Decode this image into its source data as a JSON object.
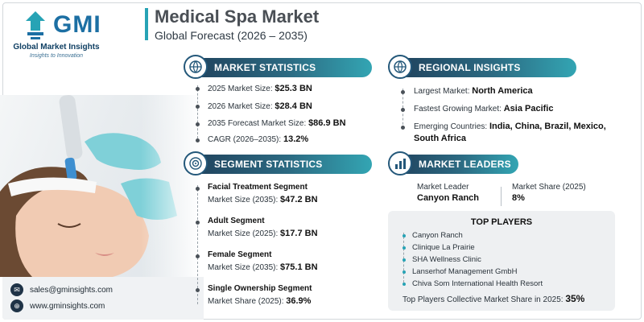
{
  "logo": {
    "wordmark": "GMI",
    "name": "Global Market Insights",
    "tagline": "Insights to Innovation"
  },
  "header": {
    "title": "Medical Spa Market",
    "subtitle": "Global Forecast (2026 – 2035)"
  },
  "market_statistics": {
    "heading": "MARKET STATISTICS",
    "icon": "globe-icon",
    "items": [
      {
        "label": "2025 Market Size: ",
        "value": "$25.3 BN"
      },
      {
        "label": "2026 Market Size: ",
        "value": "$28.4 BN"
      },
      {
        "label": "2035 Forecast Market Size: ",
        "value": "$86.9 BN"
      },
      {
        "label": "CAGR (2026–2035): ",
        "value": "13.2%"
      }
    ]
  },
  "segment_statistics": {
    "heading": "SEGMENT STATISTICS",
    "icon": "target-icon",
    "items": [
      {
        "name": "Facial Treatment Segment",
        "label": "Market Size (2035): ",
        "value": "$47.2 BN"
      },
      {
        "name": "Adult Segment",
        "label": "Market Size (2025): ",
        "value": "$17.7 BN"
      },
      {
        "name": "Female Segment",
        "label": "Market Size (2035): ",
        "value": "$75.1 BN"
      },
      {
        "name": "Single Ownership Segment",
        "label": "Market Share (2025): ",
        "value": "36.9%"
      }
    ]
  },
  "regional_insights": {
    "heading": "REGIONAL INSIGHTS",
    "icon": "globe-icon",
    "items": [
      {
        "label": "Largest Market: ",
        "value": "North America"
      },
      {
        "label": "Fastest Growing Market: ",
        "value": "Asia Pacific"
      },
      {
        "label": "Emerging Countries: ",
        "value": "India, China, Brazil, Mexico,",
        "value_cont": "South Africa"
      }
    ]
  },
  "market_leaders": {
    "heading": "MARKET LEADERS",
    "icon": "bar-chart-icon",
    "leader_label": "Market Leader",
    "leader_value": "Canyon Ranch",
    "share_label": "Market Share (2025)",
    "share_value": "8%"
  },
  "top_players": {
    "heading": "TOP PLAYERS",
    "items": [
      "Canyon Ranch",
      "Clinique La Prairie",
      "SHA Wellness Clinic",
      "Lanserhof Management GmbH",
      "Chiva Som International Health Resort"
    ],
    "share_label": "Top Players Collective Market Share in 2025: ",
    "share_value": "35%"
  },
  "contacts": {
    "email": "sales@gminsights.com",
    "website": "www.gminsights.com"
  },
  "colors": {
    "accent_teal": "#33a5b3",
    "header_navy": "#1f3f5a",
    "logo_blue": "#1c6fa3"
  }
}
